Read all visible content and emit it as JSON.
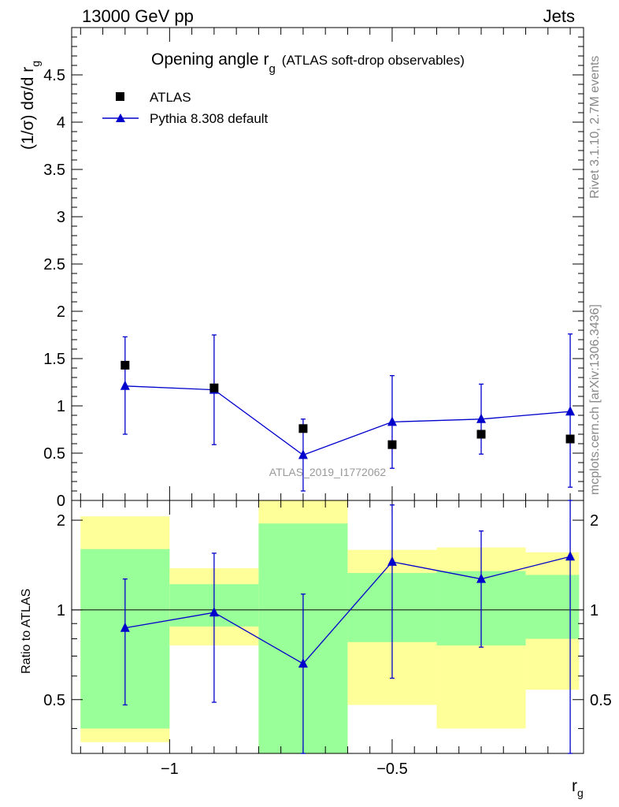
{
  "header": {
    "left": "13000 GeV pp",
    "right": "Jets"
  },
  "side_labels": {
    "rivet": "Rivet 3.1.10,  2.7M events",
    "mcplots": "mcplots.cern.ch [arXiv:1306.3436]"
  },
  "watermark": "ATLAS_2019_I1772062",
  "chart_data": [
    {
      "type": "scatter",
      "title": {
        "main": "Opening angle r",
        "main_sub": "g",
        "suffix": "(ATLAS soft-drop observables)"
      },
      "ylabel": "(1/σ) dσ/d r",
      "ylabel_sub": "g",
      "xlim": [
        -1.22,
        -0.07
      ],
      "ylim": [
        0,
        5
      ],
      "yticks": [
        {
          "v": 0,
          "label": "0"
        },
        {
          "v": 0.5,
          "label": "0.5"
        },
        {
          "v": 1,
          "label": "1"
        },
        {
          "v": 1.5,
          "label": "1.5"
        },
        {
          "v": 2,
          "label": "2"
        },
        {
          "v": 2.5,
          "label": "2.5"
        },
        {
          "v": 3,
          "label": "3"
        },
        {
          "v": 3.5,
          "label": "3.5"
        },
        {
          "v": 4,
          "label": "4"
        },
        {
          "v": 4.5,
          "label": "4.5"
        }
      ],
      "legend": {
        "position": "top-left",
        "data_label": "ATLAS",
        "mc_label": "Pythia 8.308 default"
      },
      "series": [
        {
          "name": "ATLAS",
          "marker": "square",
          "color": "#000000",
          "x": [
            -1.1,
            -0.9,
            -0.7,
            -0.5,
            -0.3,
            -0.1
          ],
          "y": [
            1.43,
            1.19,
            0.76,
            0.59,
            0.7,
            0.65
          ]
        },
        {
          "name": "Pythia 8.308 default",
          "marker": "triangle",
          "color": "#0000cc",
          "x": [
            -1.1,
            -0.9,
            -0.7,
            -0.5,
            -0.3,
            -0.1
          ],
          "y": [
            1.21,
            1.17,
            0.48,
            0.83,
            0.86,
            0.94
          ],
          "yerr_lo": [
            0.7,
            0.59,
            0.1,
            0.34,
            0.49,
            0.14
          ],
          "yerr_hi": [
            1.73,
            1.75,
            0.86,
            1.32,
            1.23,
            1.76
          ]
        }
      ]
    },
    {
      "type": "scatter",
      "ylabel": "Ratio to ATLAS",
      "xlabel": "r",
      "xlabel_sub": "g",
      "xlim": [
        -1.22,
        -0.07
      ],
      "ylim": [
        0.33,
        2.33
      ],
      "yscale": "log",
      "yticks": [
        {
          "v": 0.5,
          "label": "0.5"
        },
        {
          "v": 1,
          "label": "1"
        },
        {
          "v": 2,
          "label": "2"
        }
      ],
      "xticks": [
        {
          "v": -1,
          "label": "−1"
        },
        {
          "v": -0.5,
          "label": "−0.5"
        }
      ],
      "bands": {
        "yellow_color": "#ffff99",
        "green_color": "#99ff99",
        "bins": [
          {
            "x0": -1.2,
            "x1": -1.0,
            "yellow": [
              0.36,
              2.06
            ],
            "green": [
              0.4,
              1.6
            ]
          },
          {
            "x0": -1.0,
            "x1": -0.8,
            "yellow": [
              0.76,
              1.38
            ],
            "green": [
              0.88,
              1.22
            ]
          },
          {
            "x0": -0.8,
            "x1": -0.6,
            "yellow": [
              0.33,
              2.33
            ],
            "green": [
              0.33,
              1.95
            ]
          },
          {
            "x0": -0.6,
            "x1": -0.4,
            "yellow": [
              0.48,
              1.59
            ],
            "green": [
              0.78,
              1.33
            ]
          },
          {
            "x0": -0.4,
            "x1": -0.2,
            "yellow": [
              0.4,
              1.62
            ],
            "green": [
              0.76,
              1.35
            ]
          },
          {
            "x0": -0.2,
            "x1": -0.08,
            "yellow": [
              0.54,
              1.56
            ],
            "green": [
              0.8,
              1.31
            ]
          }
        ]
      },
      "series": [
        {
          "name": "Pythia 8.308 default",
          "marker": "triangle",
          "color": "#0000cc",
          "x": [
            -1.1,
            -0.9,
            -0.7,
            -0.5,
            -0.3,
            -0.1
          ],
          "y": [
            0.87,
            0.98,
            0.66,
            1.45,
            1.27,
            1.51
          ],
          "yerr_lo": [
            0.48,
            0.49,
            0.14,
            0.59,
            0.75,
            0.33
          ],
          "yerr_hi": [
            1.27,
            1.55,
            1.13,
            2.25,
            1.84,
            2.33
          ]
        }
      ]
    }
  ]
}
